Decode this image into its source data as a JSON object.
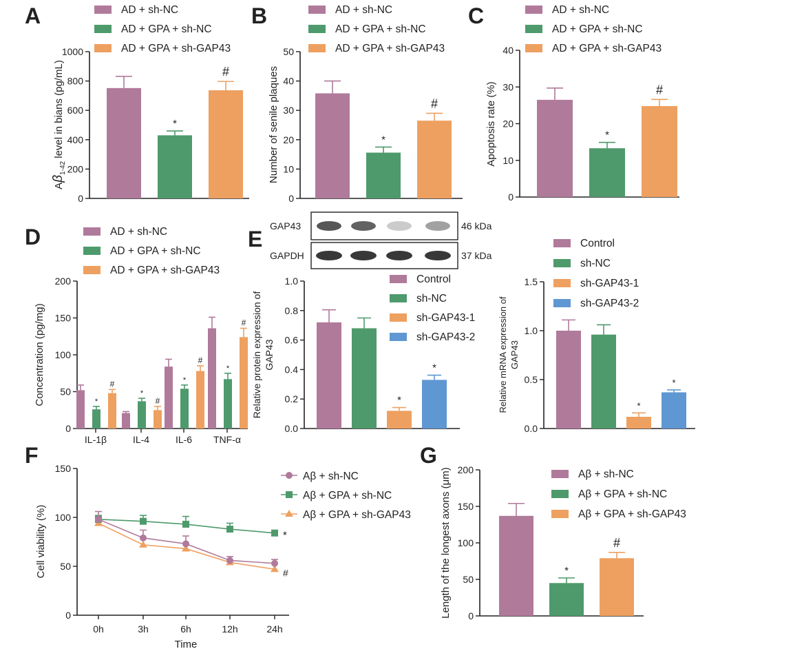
{
  "colors": {
    "mauve": "#b07a9b",
    "green": "#4e9a6c",
    "orange": "#eea060",
    "blue": "#5f97d2",
    "axis": "#222222"
  },
  "panel_labels": [
    "A",
    "B",
    "C",
    "D",
    "E",
    "F",
    "G"
  ],
  "blot": {
    "rows": [
      {
        "label": "GAP43",
        "kda": "46 kDa",
        "intensity": [
          0.8,
          0.75,
          0.25,
          0.45
        ]
      },
      {
        "label": "GAPDH",
        "kda": "37 kDa",
        "intensity": [
          0.95,
          0.95,
          0.95,
          0.95
        ]
      }
    ]
  },
  "chart_data": [
    {
      "id": "A",
      "type": "bar",
      "ylabel": "Aβ1-42 level in bians (pg/mL)",
      "ylabel_pre": "A",
      "ylabel_beta": "β",
      "ylabel_sub": "1-42",
      "ylabel_post": " level in bians (pg/mL)",
      "ylim": [
        0,
        1000
      ],
      "yticks": [
        "0",
        "200",
        "400",
        "600",
        "800",
        "1000"
      ],
      "categories": [
        "AD + sh-NC",
        "AD + GPA + sh-NC",
        "AD + GPA + sh-GAP43"
      ],
      "values": [
        752,
        430,
        737
      ],
      "errors": [
        80,
        30,
        60
      ],
      "marks": [
        "",
        "*",
        "#"
      ]
    },
    {
      "id": "B",
      "type": "bar",
      "ylabel": "Number of senile plaques",
      "ylim": [
        0,
        50
      ],
      "yticks": [
        "0",
        "10",
        "20",
        "30",
        "40",
        "50"
      ],
      "categories": [
        "AD + sh-NC",
        "AD + GPA + sh-NC",
        "AD + GPA + sh-GAP43"
      ],
      "values": [
        35.8,
        15.6,
        26.5
      ],
      "errors": [
        4.2,
        1.9,
        2.5
      ],
      "marks": [
        "",
        "*",
        "#"
      ]
    },
    {
      "id": "C",
      "type": "bar",
      "ylabel": "Apoptosis rate (%)",
      "ylim": [
        0,
        40
      ],
      "yticks": [
        "0",
        "10",
        "20",
        "30",
        "40"
      ],
      "categories": [
        "AD + sh-NC",
        "AD + GPA + sh-NC",
        "AD + GPA + sh-GAP43"
      ],
      "values": [
        26.5,
        13.3,
        24.8
      ],
      "errors": [
        3.2,
        1.6,
        1.8
      ],
      "marks": [
        "",
        "*",
        "#"
      ]
    },
    {
      "id": "D",
      "type": "bar",
      "ylabel": "Concentration (pg/mg)",
      "ylim": [
        0,
        200
      ],
      "yticks": [
        "0",
        "50",
        "100",
        "150",
        "200"
      ],
      "categories": [
        "IL-1β",
        "IL-4",
        "IL-6",
        "TNF-α"
      ],
      "series": [
        {
          "name": "AD + sh-NC",
          "values": [
            52,
            21,
            84,
            136
          ],
          "errors": [
            7,
            2,
            10,
            15
          ],
          "marks": [
            "",
            "",
            "",
            ""
          ]
        },
        {
          "name": "AD + GPA + sh-NC",
          "values": [
            26,
            37,
            54,
            67
          ],
          "errors": [
            4,
            4,
            5,
            8
          ],
          "marks": [
            "*",
            "*",
            "*",
            "*"
          ]
        },
        {
          "name": "AD + GPA + sh-GAP43",
          "values": [
            48,
            25,
            78,
            124
          ],
          "errors": [
            5,
            5,
            7,
            12
          ],
          "marks": [
            "#",
            "#",
            "#",
            "#"
          ]
        }
      ]
    },
    {
      "id": "E1",
      "type": "bar",
      "ylabel": "Relative protein expression of GAP43",
      "ylabel_line1": "Relative protein expression of",
      "ylabel_line2": "GAP43",
      "ylim": [
        0,
        1.0
      ],
      "yticks": [
        "0.0",
        "0.2",
        "0.4",
        "0.6",
        "0.8",
        "1.0"
      ],
      "categories": [
        "Control",
        "sh-NC",
        "sh-GAP43-1",
        "sh-GAP43-2"
      ],
      "values": [
        0.72,
        0.68,
        0.12,
        0.33
      ],
      "errors": [
        0.085,
        0.07,
        0.022,
        0.032
      ],
      "marks": [
        "",
        "",
        "*",
        "*"
      ]
    },
    {
      "id": "E2",
      "type": "bar",
      "ylabel": "Relative mRNA expression of GAP43",
      "ylabel_line1": "Relative mRNA expression of",
      "ylabel_line2": "GAP43",
      "ylim": [
        0,
        1.5
      ],
      "yticks": [
        "0.0",
        "0.5",
        "1.0",
        "1.5"
      ],
      "categories": [
        "Control",
        "sh-NC",
        "sh-GAP43-1",
        "sh-GAP43-2"
      ],
      "values": [
        1.0,
        0.96,
        0.12,
        0.37
      ],
      "errors": [
        0.11,
        0.1,
        0.04,
        0.025
      ],
      "marks": [
        "",
        "",
        "*",
        "*"
      ]
    },
    {
      "id": "F",
      "type": "line",
      "xlabel": "Time",
      "ylabel": "Cell viability (%)",
      "ylim": [
        0,
        150
      ],
      "yticks": [
        "0",
        "50",
        "100",
        "150"
      ],
      "x": [
        "0h",
        "3h",
        "6h",
        "12h",
        "24h"
      ],
      "series": [
        {
          "name": "Aβ + sh-NC",
          "values": [
            98,
            79,
            73,
            56,
            53
          ],
          "errors": [
            8,
            8,
            8,
            4,
            4
          ],
          "end_mark": ""
        },
        {
          "name": "Aβ + GPA + sh-NC",
          "values": [
            98,
            96,
            93,
            88,
            84
          ],
          "errors": [
            4,
            6,
            8,
            6,
            0
          ],
          "end_mark": "*"
        },
        {
          "name": "Aβ + GPA + sh-GAP43",
          "values": [
            94,
            72,
            68,
            54,
            47
          ],
          "errors": [
            0,
            0,
            0,
            0,
            0
          ],
          "end_mark": "#"
        }
      ]
    },
    {
      "id": "G",
      "type": "bar",
      "ylabel": "Length of the longest axons (μm)",
      "ylim": [
        0,
        200
      ],
      "yticks": [
        "0",
        "50",
        "100",
        "150",
        "200"
      ],
      "categories": [
        "Aβ + sh-NC",
        "Aβ + GPA + sh-NC",
        "Aβ + GPA + sh-GAP43"
      ],
      "values": [
        137,
        45,
        79
      ],
      "errors": [
        17,
        7,
        8
      ],
      "marks": [
        "",
        "*",
        "#"
      ]
    }
  ]
}
